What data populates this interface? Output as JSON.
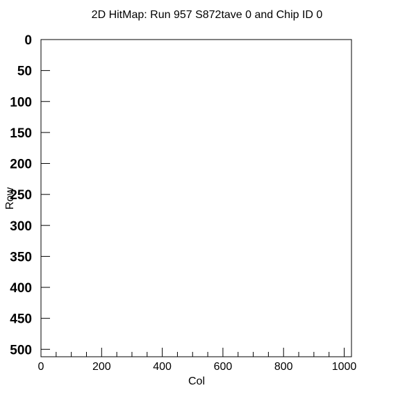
{
  "chart_data": {
    "type": "heatmap",
    "title": "2D HitMap: Run 957 S872tave 0 and Chip ID 0",
    "xlabel": "Col",
    "ylabel": "Row",
    "xlim": [
      0,
      1024
    ],
    "ylim": [
      0,
      512
    ],
    "y_inverted": true,
    "x_ticks": [
      0,
      200,
      400,
      600,
      800,
      1000
    ],
    "x_tick_labels": [
      "0",
      "200",
      "400",
      "600",
      "800",
      "1000"
    ],
    "x_minor_step": 50,
    "y_ticks": [
      0,
      50,
      100,
      150,
      200,
      250,
      300,
      350,
      400,
      450,
      500
    ],
    "y_tick_labels": [
      "0",
      "50",
      "100",
      "150",
      "200",
      "250",
      "300",
      "350",
      "400",
      "450",
      "500"
    ],
    "grid": false,
    "values": []
  }
}
